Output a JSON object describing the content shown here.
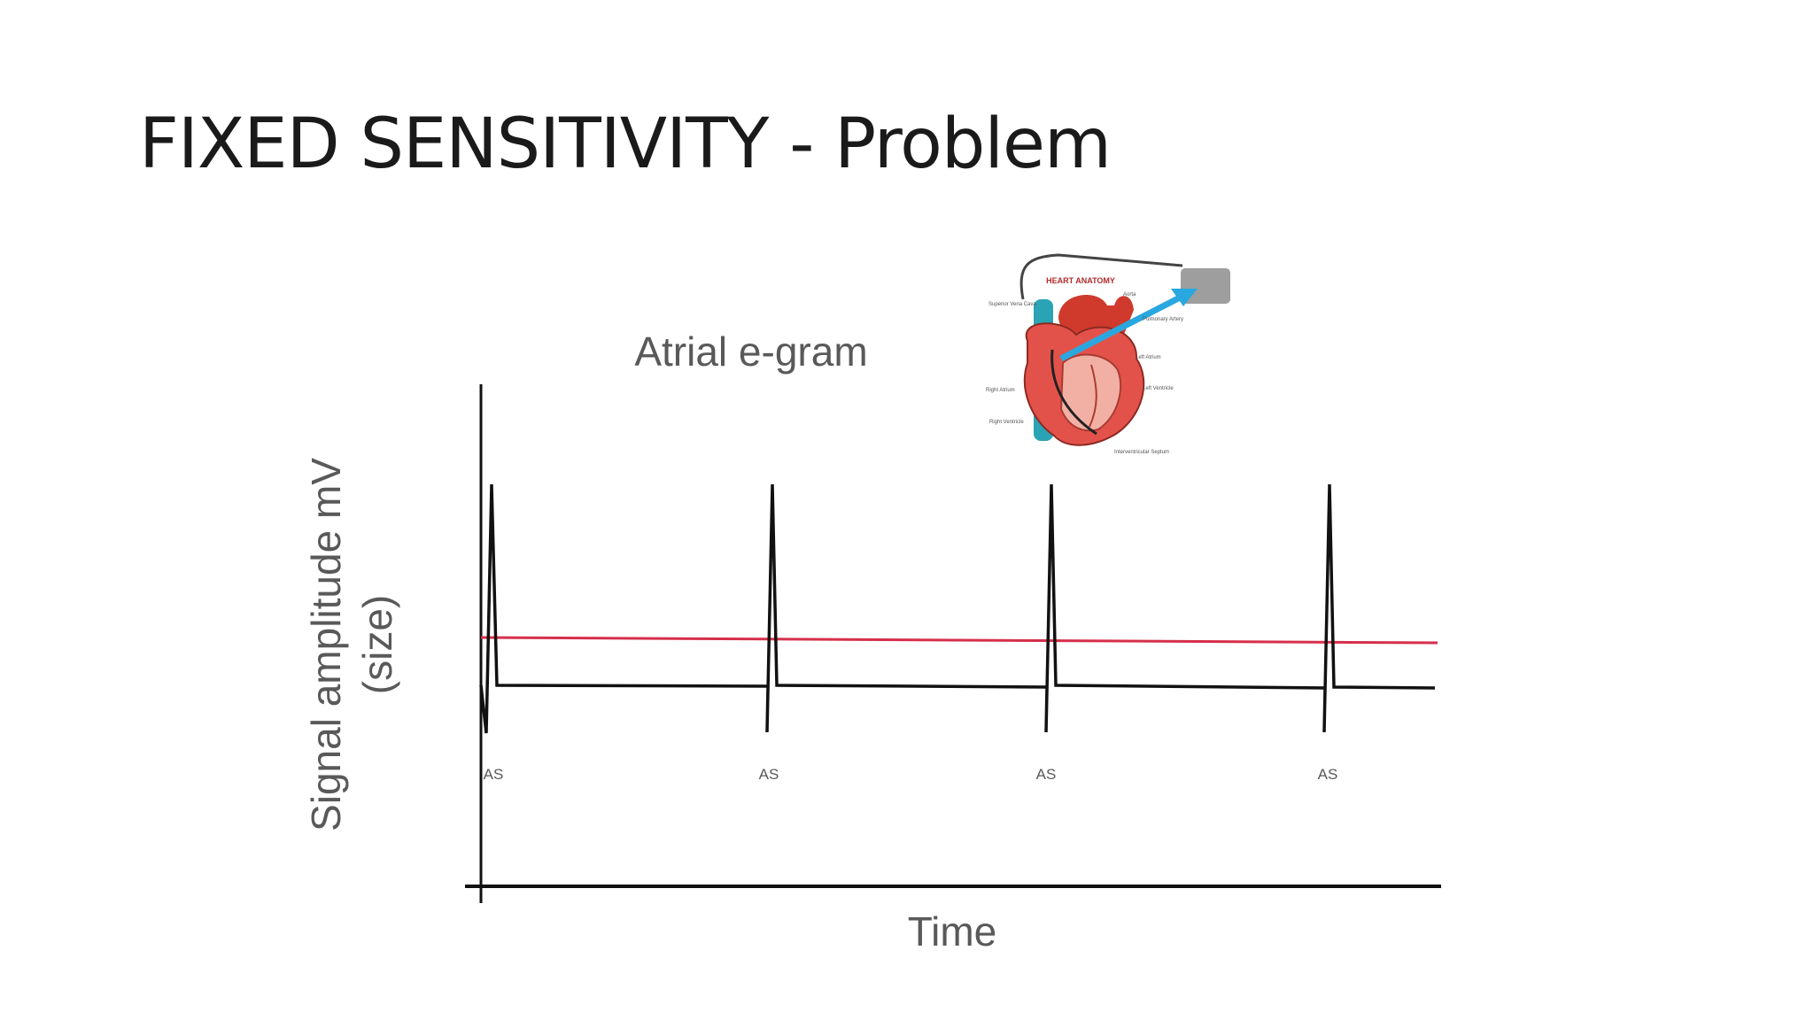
{
  "slide": {
    "title": "FIXED SENSITIVITY - Problem"
  },
  "diagram": {
    "title": "Atrial e-gram",
    "y_axis_label_line1": "Signal amplitude mV",
    "y_axis_label_line2": "(size)",
    "x_axis_label": "Time",
    "event_markers": [
      "AS",
      "AS",
      "AS",
      "AS"
    ],
    "sensing_threshold_color": "#d62f4b",
    "signal_color": "#111111"
  },
  "heart_illustration": {
    "heading": "HEART ANATOMY",
    "labels": [
      "Aorta",
      "Superior Vena Cava",
      "Pulmonary Artery",
      "Left Atrium",
      "Right Atrium",
      "Left Ventricle",
      "Right Ventricle",
      "Interventricular Septum"
    ],
    "lead_arrow_color": "#29a8e0",
    "device_color": "#9e9e9e"
  }
}
